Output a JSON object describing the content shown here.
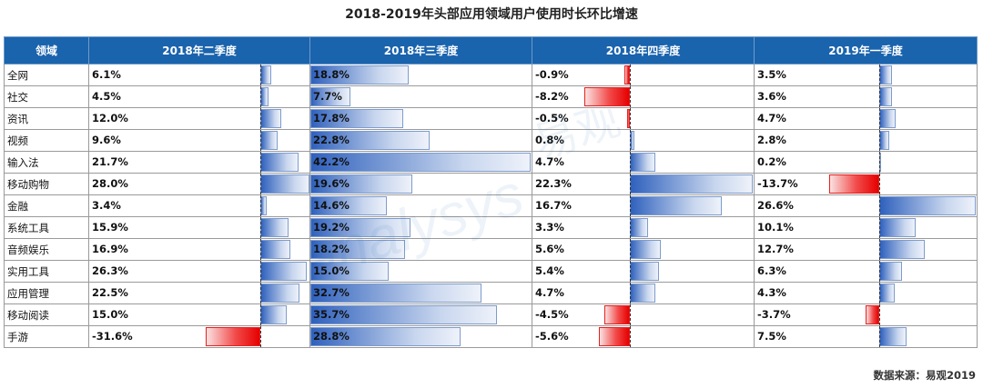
{
  "title": "2018-2019年头部应用领域用户使用时长环比增速",
  "source": "数据来源：易观2019",
  "colors": {
    "header_bg": "#1a63ad",
    "positive_bar": "#2f61bd",
    "negative_bar": "#e60000"
  },
  "chart_data": {
    "type": "table",
    "title": "2018-2019年头部应用领域用户使用时长环比增速",
    "category_header": "领域",
    "columns": [
      "2018年二季度",
      "2018年三季度",
      "2018年四季度",
      "2019年一季度"
    ],
    "rows": [
      {
        "category": "全网",
        "values": [
          6.1,
          18.8,
          -0.9,
          3.5
        ],
        "labels": [
          "6.1%",
          "18.8%",
          "-0.9%",
          "3.5%"
        ]
      },
      {
        "category": "社交",
        "values": [
          4.5,
          7.7,
          -8.2,
          3.6
        ],
        "labels": [
          "4.5%",
          "7.7%",
          "-8.2%",
          "3.6%"
        ]
      },
      {
        "category": "资讯",
        "values": [
          12.0,
          17.8,
          -0.5,
          4.7
        ],
        "labels": [
          "12.0%",
          "17.8%",
          "-0.5%",
          "4.7%"
        ]
      },
      {
        "category": "视频",
        "values": [
          9.6,
          22.8,
          0.8,
          2.8
        ],
        "labels": [
          "9.6%",
          "22.8%",
          "0.8%",
          "2.8%"
        ]
      },
      {
        "category": "输入法",
        "values": [
          21.7,
          42.2,
          4.7,
          0.2
        ],
        "labels": [
          "21.7%",
          "42.2%",
          "4.7%",
          "0.2%"
        ]
      },
      {
        "category": "移动购物",
        "values": [
          28.0,
          19.6,
          22.3,
          -13.7
        ],
        "labels": [
          "28.0%",
          "19.6%",
          "22.3%",
          "-13.7%"
        ]
      },
      {
        "category": "金融",
        "values": [
          3.4,
          14.6,
          16.7,
          26.6
        ],
        "labels": [
          "3.4%",
          "14.6%",
          "16.7%",
          "26.6%"
        ]
      },
      {
        "category": "系统工具",
        "values": [
          15.9,
          19.2,
          3.3,
          10.1
        ],
        "labels": [
          "15.9%",
          "19.2%",
          "3.3%",
          "10.1%"
        ]
      },
      {
        "category": "音频娱乐",
        "values": [
          16.9,
          18.2,
          5.6,
          12.7
        ],
        "labels": [
          "16.9%",
          "18.2%",
          "5.6%",
          "12.7%"
        ]
      },
      {
        "category": "实用工具",
        "values": [
          26.3,
          15.0,
          5.4,
          6.3
        ],
        "labels": [
          "26.3%",
          "15.0%",
          "5.4%",
          "6.3%"
        ]
      },
      {
        "category": "应用管理",
        "values": [
          22.5,
          32.7,
          4.7,
          4.3
        ],
        "labels": [
          "22.5%",
          "32.7%",
          "4.7%",
          "4.3%"
        ]
      },
      {
        "category": "移动阅读",
        "values": [
          15.0,
          35.7,
          -4.5,
          -3.7
        ],
        "labels": [
          "15.0%",
          "35.7%",
          "-4.5%",
          "-3.7%"
        ]
      },
      {
        "category": "手游",
        "values": [
          -31.6,
          28.8,
          -5.6,
          7.5
        ],
        "labels": [
          "-31.6%",
          "28.8%",
          "-5.6%",
          "7.5%"
        ]
      }
    ],
    "column_ranges": [
      [
        -31.6,
        28.0
      ],
      [
        0,
        42.2
      ],
      [
        -8.2,
        22.3
      ],
      [
        -13.7,
        26.6
      ]
    ]
  }
}
